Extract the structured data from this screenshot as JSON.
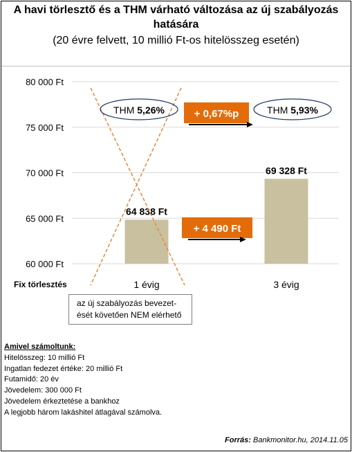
{
  "title_line1": "A havi törlesztő és a THM várható változása az új szabályozás",
  "title_line2": "hatására",
  "subtitle": "(20 évre felvett, 10 millió  Ft-os hitelösszeg esetén)",
  "chart_data": {
    "type": "bar",
    "ylim": [
      60000,
      80000
    ],
    "ytick_values": [
      80000,
      75000,
      70000,
      65000,
      60000
    ],
    "ytick_labels": [
      "80 000 Ft",
      "75 000 Ft",
      "70 000 Ft",
      "65 000 Ft",
      "60 000 Ft"
    ],
    "categories": [
      "1 évig",
      "3 évig"
    ],
    "values": [
      64838,
      69328
    ],
    "data_labels": [
      "64 838 Ft",
      "69 328 Ft"
    ],
    "series_label": "Fix törlesztés",
    "bar_color": "#c9c0a0",
    "grid": true,
    "first_bar_crossed_out": true,
    "annotations": {
      "thm_before_prefix": "THM ",
      "thm_before_value": "5,26%",
      "thm_after_prefix": "THM ",
      "thm_after_value": "5,93%",
      "thm_change": "+ 0,67%p",
      "payment_change": "+ 4 490 Ft"
    }
  },
  "colors": {
    "accent_orange": "#e36c09",
    "ellipse_blue": "#1f3864",
    "grid": "#d9d9d9",
    "cross": "#e38a3c"
  },
  "note": {
    "line1": "az új szabályozás bevezet-",
    "line2": "ését követően NEM elérhető"
  },
  "assumptions": {
    "header": "Amivel számoltunk:",
    "lines": [
      "Hitelösszeg: 10 millió  Ft",
      "Ingatlan fedezet értéke: 20 millió  Ft",
      "Futamidő: 20 év",
      "Jövedelem:  300 000 Ft",
      "Jövedelem  érkeztetése a bankhoz",
      "A legjobb  három lakáshitel átlagával számolva."
    ]
  },
  "source": {
    "label": "Forrás:",
    "text": " Bankmonitor.hu, 2014.11.05"
  }
}
